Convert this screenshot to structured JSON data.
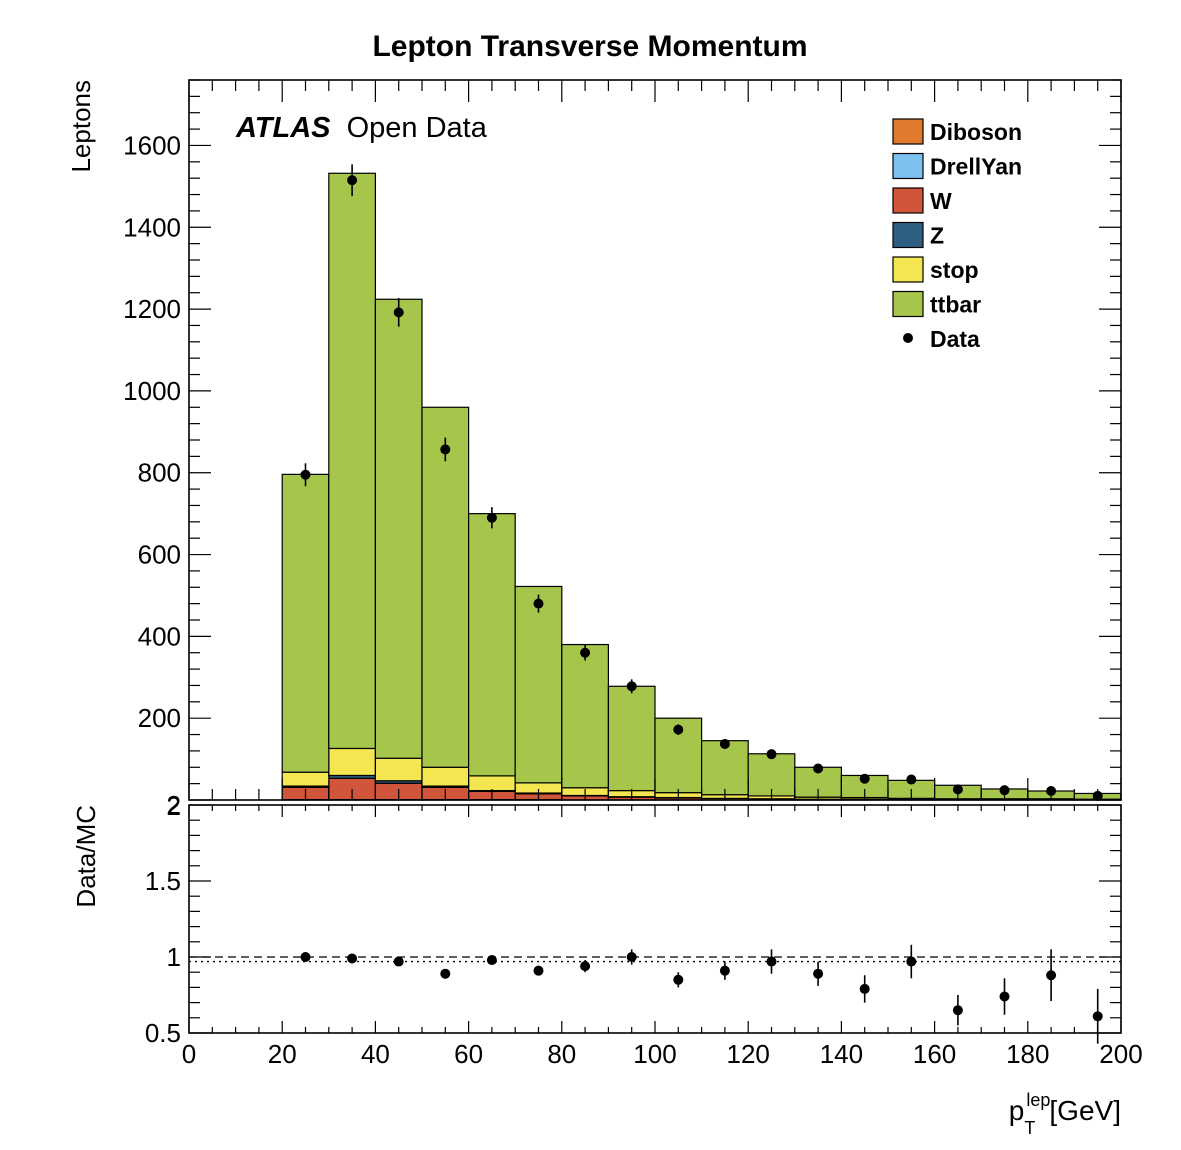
{
  "chart_data": [
    {
      "type": "bar",
      "stacked": true,
      "title": "Lepton Transverse Momentum",
      "annotation": {
        "bold": "ATLAS",
        "text": "Open Data"
      },
      "ylabel": "Leptons",
      "xlim": [
        0,
        200
      ],
      "ylim": [
        0,
        1760
      ],
      "yticks": [
        200,
        400,
        600,
        800,
        1000,
        1200,
        1400,
        1600
      ],
      "ytick_zero_label": "2",
      "bin_edges": [
        20,
        30,
        40,
        50,
        60,
        70,
        80,
        90,
        100,
        110,
        120,
        130,
        140,
        150,
        160,
        170,
        180,
        190,
        200
      ],
      "legend_position": "top-right",
      "series": [
        {
          "name": "Diboson",
          "color": "#e07b2e",
          "values": [
            1,
            1,
            1,
            1,
            1,
            1,
            0,
            0,
            0,
            0,
            0,
            0,
            0,
            0,
            0,
            0,
            0,
            0
          ]
        },
        {
          "name": "DrellYan",
          "color": "#7cc0ee",
          "values": [
            0,
            0,
            0,
            0,
            0,
            0,
            0,
            0,
            0,
            0,
            0,
            0,
            0,
            0,
            0,
            0,
            0,
            0
          ]
        },
        {
          "name": "W",
          "color": "#d0553a",
          "values": [
            30,
            52,
            40,
            30,
            20,
            14,
            10,
            7,
            5,
            4,
            3,
            2,
            2,
            1,
            1,
            1,
            1,
            1
          ]
        },
        {
          "name": "Z",
          "color": "#2e5f82",
          "values": [
            3,
            7,
            6,
            3,
            2,
            2,
            1,
            1,
            1,
            0,
            0,
            0,
            0,
            0,
            0,
            0,
            0,
            0
          ]
        },
        {
          "name": "stop",
          "color": "#f3e650",
          "values": [
            34,
            66,
            55,
            46,
            36,
            25,
            19,
            15,
            12,
            9,
            7,
            5,
            4,
            3,
            2,
            2,
            2,
            1
          ]
        },
        {
          "name": "ttbar",
          "color": "#a6c54b",
          "values": [
            728,
            1406,
            1122,
            880,
            641,
            480,
            350,
            255,
            182,
            132,
            103,
            73,
            54,
            44,
            33,
            24,
            19,
            14
          ]
        }
      ],
      "data": {
        "name": "Data",
        "x": [
          25,
          35,
          45,
          55,
          65,
          75,
          85,
          95,
          105,
          115,
          125,
          135,
          145,
          155,
          165,
          175,
          185,
          195
        ],
        "y": [
          795,
          1515,
          1192,
          857,
          690,
          480,
          360,
          278,
          172,
          137,
          112,
          77,
          52,
          50,
          26,
          24,
          22,
          10
        ],
        "err": [
          28,
          39,
          35,
          29,
          26,
          22,
          19,
          17,
          13,
          12,
          11,
          9,
          7,
          7,
          5,
          5,
          5,
          3
        ]
      }
    },
    {
      "type": "scatter",
      "xlabel": "p_T^lep [GeV]",
      "xlabel_parts": {
        "main": "p",
        "sub": "T",
        "sup": "lep",
        "unit": "[GeV]"
      },
      "ylabel": "Data/MC",
      "xlim": [
        0,
        200
      ],
      "ylim": [
        0.5,
        2.0
      ],
      "yticks": [
        0.5,
        1,
        1.5,
        2
      ],
      "ytick_labels": [
        "0.5",
        "1",
        "1.5",
        "2"
      ],
      "xticks": [
        0,
        20,
        40,
        60,
        80,
        100,
        120,
        140,
        160,
        180,
        200
      ],
      "xtick_labels": [
        "0",
        "20",
        "40",
        "60",
        "80",
        "100",
        "120",
        "140",
        "160",
        "180",
        "200"
      ],
      "reference_lines": [
        {
          "y": 1.0,
          "style": "dashed"
        },
        {
          "y": 0.97,
          "style": "dotted"
        }
      ],
      "x": [
        25,
        35,
        45,
        55,
        65,
        75,
        85,
        95,
        105,
        115,
        125,
        135,
        145,
        155,
        165,
        175,
        185,
        195
      ],
      "y": [
        1.0,
        0.99,
        0.97,
        0.89,
        0.98,
        0.91,
        0.94,
        1.0,
        0.85,
        0.91,
        0.97,
        0.89,
        0.79,
        0.97,
        0.65,
        0.74,
        0.88,
        0.61
      ],
      "err": [
        0.02,
        0.02,
        0.02,
        0.02,
        0.03,
        0.03,
        0.04,
        0.05,
        0.05,
        0.06,
        0.08,
        0.08,
        0.09,
        0.11,
        0.1,
        0.12,
        0.17,
        0.18
      ]
    }
  ]
}
